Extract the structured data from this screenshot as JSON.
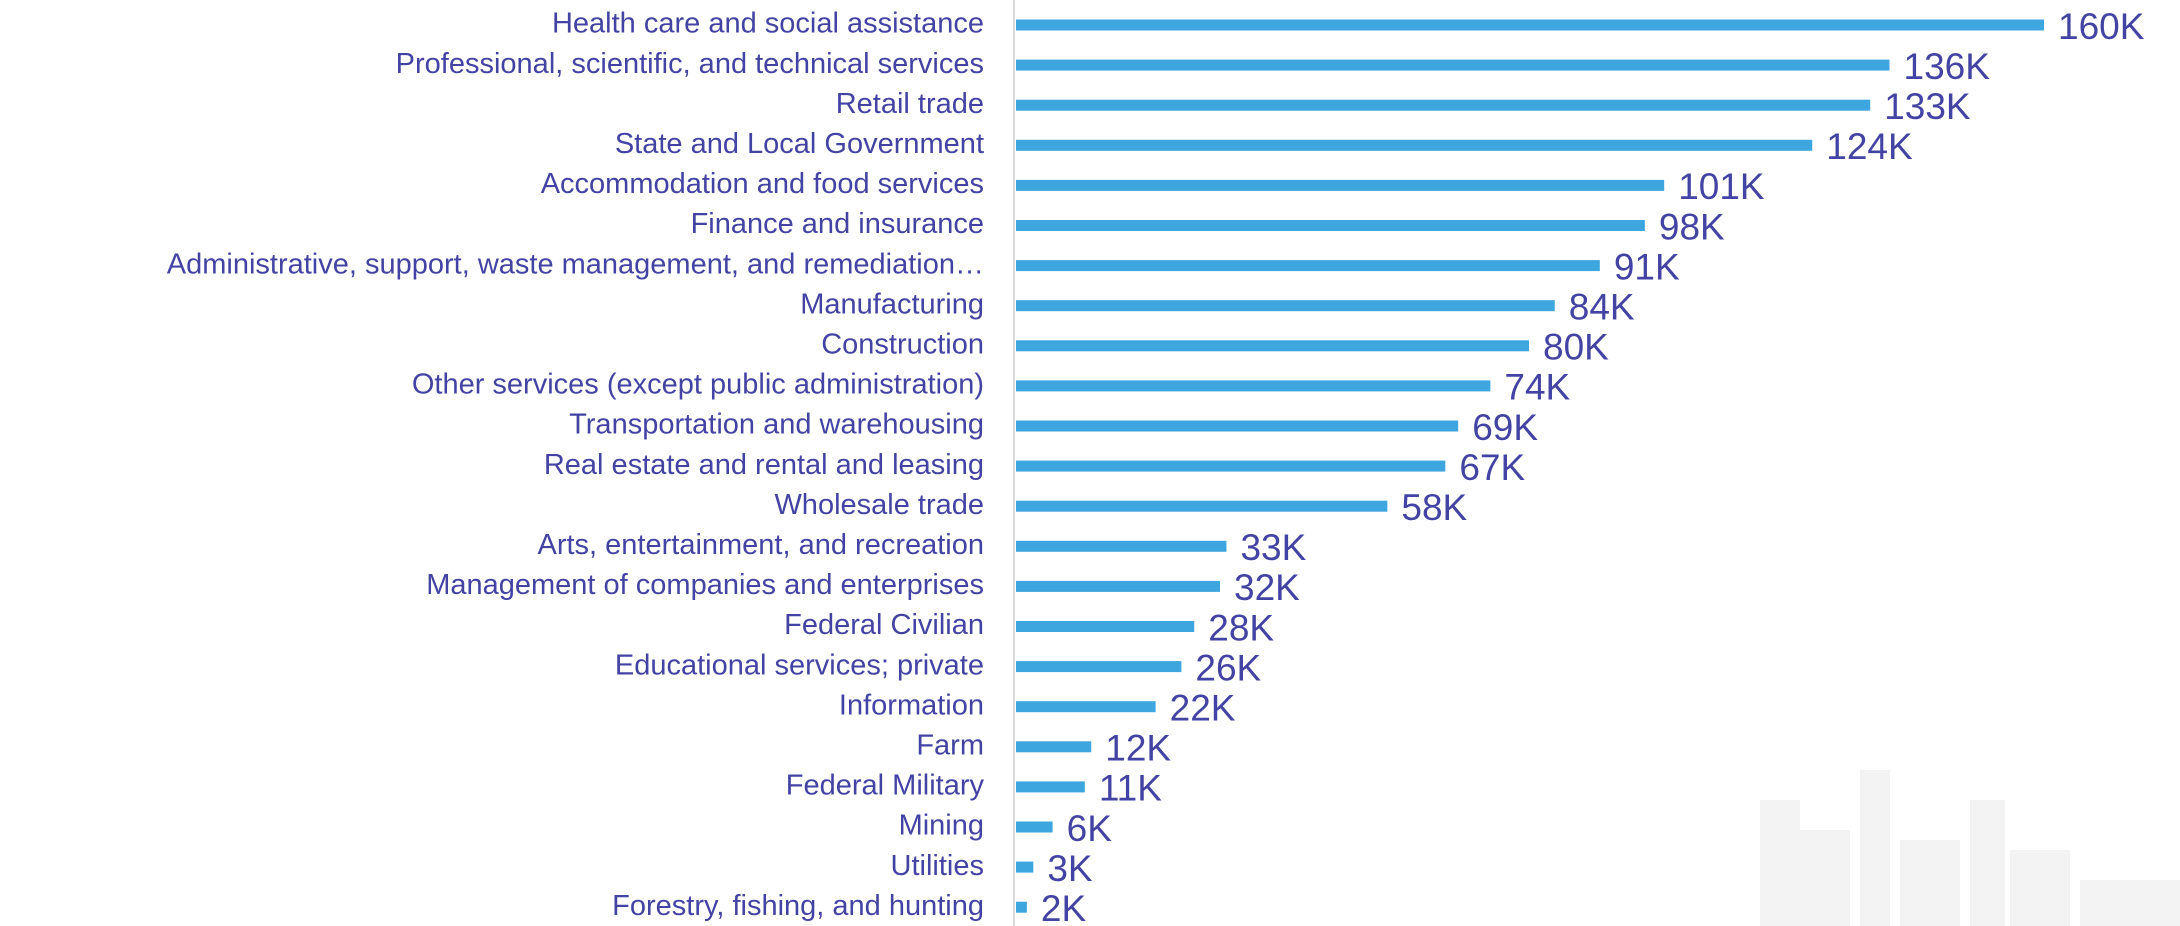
{
  "chart_data": {
    "type": "bar",
    "orientation": "horizontal",
    "color": "#3ea6de",
    "categories": [
      "Health care and social assistance",
      "Professional, scientific, and technical services",
      "Retail trade",
      "State and Local Government",
      "Accommodation and food services",
      "Finance and insurance",
      "Administrative, support, waste management, and remediation…",
      "Manufacturing",
      "Construction",
      "Other services (except public administration)",
      "Transportation and warehousing",
      "Real estate and rental and leasing",
      "Wholesale trade",
      "Arts, entertainment, and recreation",
      "Management of companies and enterprises",
      "Federal Civilian",
      "Educational services; private",
      "Information",
      "Farm",
      "Federal Military",
      "Mining",
      "Utilities",
      "Forestry, fishing, and hunting"
    ],
    "values": [
      160000,
      136000,
      133000,
      124000,
      101000,
      98000,
      91000,
      84000,
      80000,
      74000,
      69000,
      67000,
      58000,
      33000,
      32000,
      28000,
      26000,
      22000,
      12000,
      11000,
      6000,
      3000,
      2000
    ],
    "value_labels": [
      "160K",
      "136K",
      "133K",
      "124K",
      "101K",
      "98K",
      "91K",
      "84K",
      "80K",
      "74K",
      "69K",
      "67K",
      "58K",
      "33K",
      "32K",
      "28K",
      "26K",
      "22K",
      "12K",
      "11K",
      "6K",
      "3K",
      "2K"
    ]
  }
}
